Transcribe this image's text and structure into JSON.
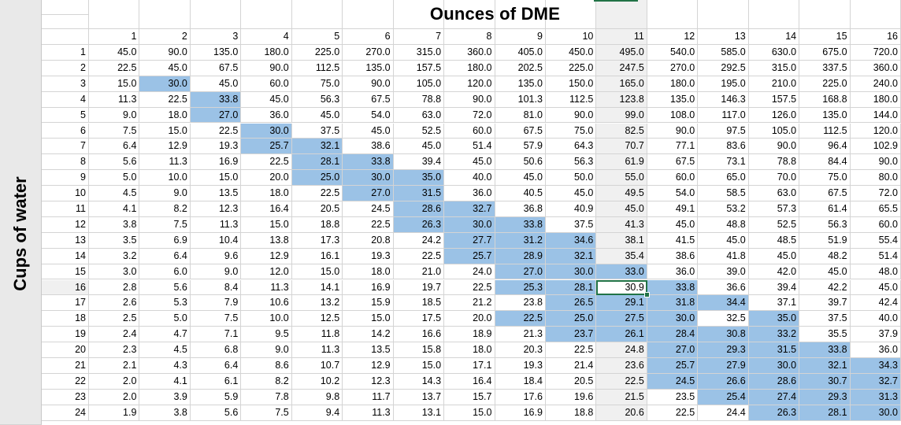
{
  "sheet": {
    "title": "Ounces of DME",
    "row_axis_label": "Cups of water",
    "column_headers": [
      "1",
      "2",
      "3",
      "4",
      "5",
      "6",
      "7",
      "8",
      "9",
      "10",
      "11",
      "12",
      "13",
      "14",
      "15",
      "16"
    ],
    "active_cell": {
      "row": "16",
      "column": "11",
      "value": "30.9"
    },
    "colors": {
      "highlight": "#9bc2e6",
      "selection_border": "#217346",
      "grid": "#d4d4d4"
    },
    "rows": [
      {
        "label": "1",
        "cells": [
          "45.0",
          "90.0",
          "135.0",
          "180.0",
          "225.0",
          "270.0",
          "315.0",
          "360.0",
          "405.0",
          "450.0",
          "495.0",
          "540.0",
          "585.0",
          "630.0",
          "675.0",
          "720.0"
        ],
        "highlight": []
      },
      {
        "label": "2",
        "cells": [
          "22.5",
          "45.0",
          "67.5",
          "90.0",
          "112.5",
          "135.0",
          "157.5",
          "180.0",
          "202.5",
          "225.0",
          "247.5",
          "270.0",
          "292.5",
          "315.0",
          "337.5",
          "360.0"
        ],
        "highlight": []
      },
      {
        "label": "3",
        "cells": [
          "15.0",
          "30.0",
          "45.0",
          "60.0",
          "75.0",
          "90.0",
          "105.0",
          "120.0",
          "135.0",
          "150.0",
          "165.0",
          "180.0",
          "195.0",
          "210.0",
          "225.0",
          "240.0"
        ],
        "highlight": [
          2
        ]
      },
      {
        "label": "4",
        "cells": [
          "11.3",
          "22.5",
          "33.8",
          "45.0",
          "56.3",
          "67.5",
          "78.8",
          "90.0",
          "101.3",
          "112.5",
          "123.8",
          "135.0",
          "146.3",
          "157.5",
          "168.8",
          "180.0"
        ],
        "highlight": [
          3
        ]
      },
      {
        "label": "5",
        "cells": [
          "9.0",
          "18.0",
          "27.0",
          "36.0",
          "45.0",
          "54.0",
          "63.0",
          "72.0",
          "81.0",
          "90.0",
          "99.0",
          "108.0",
          "117.0",
          "126.0",
          "135.0",
          "144.0"
        ],
        "highlight": [
          3
        ]
      },
      {
        "label": "6",
        "cells": [
          "7.5",
          "15.0",
          "22.5",
          "30.0",
          "37.5",
          "45.0",
          "52.5",
          "60.0",
          "67.5",
          "75.0",
          "82.5",
          "90.0",
          "97.5",
          "105.0",
          "112.5",
          "120.0"
        ],
        "highlight": [
          4
        ]
      },
      {
        "label": "7",
        "cells": [
          "6.4",
          "12.9",
          "19.3",
          "25.7",
          "32.1",
          "38.6",
          "45.0",
          "51.4",
          "57.9",
          "64.3",
          "70.7",
          "77.1",
          "83.6",
          "90.0",
          "96.4",
          "102.9"
        ],
        "highlight": [
          4,
          5
        ]
      },
      {
        "label": "8",
        "cells": [
          "5.6",
          "11.3",
          "16.9",
          "22.5",
          "28.1",
          "33.8",
          "39.4",
          "45.0",
          "50.6",
          "56.3",
          "61.9",
          "67.5",
          "73.1",
          "78.8",
          "84.4",
          "90.0"
        ],
        "highlight": [
          5,
          6
        ]
      },
      {
        "label": "9",
        "cells": [
          "5.0",
          "10.0",
          "15.0",
          "20.0",
          "25.0",
          "30.0",
          "35.0",
          "40.0",
          "45.0",
          "50.0",
          "55.0",
          "60.0",
          "65.0",
          "70.0",
          "75.0",
          "80.0"
        ],
        "highlight": [
          5,
          6,
          7
        ]
      },
      {
        "label": "10",
        "cells": [
          "4.5",
          "9.0",
          "13.5",
          "18.0",
          "22.5",
          "27.0",
          "31.5",
          "36.0",
          "40.5",
          "45.0",
          "49.5",
          "54.0",
          "58.5",
          "63.0",
          "67.5",
          "72.0"
        ],
        "highlight": [
          6,
          7
        ]
      },
      {
        "label": "11",
        "cells": [
          "4.1",
          "8.2",
          "12.3",
          "16.4",
          "20.5",
          "24.5",
          "28.6",
          "32.7",
          "36.8",
          "40.9",
          "45.0",
          "49.1",
          "53.2",
          "57.3",
          "61.4",
          "65.5"
        ],
        "highlight": [
          7,
          8
        ]
      },
      {
        "label": "12",
        "cells": [
          "3.8",
          "7.5",
          "11.3",
          "15.0",
          "18.8",
          "22.5",
          "26.3",
          "30.0",
          "33.8",
          "37.5",
          "41.3",
          "45.0",
          "48.8",
          "52.5",
          "56.3",
          "60.0"
        ],
        "highlight": [
          7,
          8,
          9
        ]
      },
      {
        "label": "13",
        "cells": [
          "3.5",
          "6.9",
          "10.4",
          "13.8",
          "17.3",
          "20.8",
          "24.2",
          "27.7",
          "31.2",
          "34.6",
          "38.1",
          "41.5",
          "45.0",
          "48.5",
          "51.9",
          "55.4"
        ],
        "highlight": [
          8,
          9,
          10
        ]
      },
      {
        "label": "14",
        "cells": [
          "3.2",
          "6.4",
          "9.6",
          "12.9",
          "16.1",
          "19.3",
          "22.5",
          "25.7",
          "28.9",
          "32.1",
          "35.4",
          "38.6",
          "41.8",
          "45.0",
          "48.2",
          "51.4"
        ],
        "highlight": [
          8,
          9,
          10
        ]
      },
      {
        "label": "15",
        "cells": [
          "3.0",
          "6.0",
          "9.0",
          "12.0",
          "15.0",
          "18.0",
          "21.0",
          "24.0",
          "27.0",
          "30.0",
          "33.0",
          "36.0",
          "39.0",
          "42.0",
          "45.0",
          "48.0"
        ],
        "highlight": [
          9,
          10,
          11
        ]
      },
      {
        "label": "16",
        "cells": [
          "2.8",
          "5.6",
          "8.4",
          "11.3",
          "14.1",
          "16.9",
          "19.7",
          "22.5",
          "25.3",
          "28.1",
          "30.9",
          "33.8",
          "36.6",
          "39.4",
          "42.2",
          "45.0"
        ],
        "highlight": [
          9,
          10,
          12
        ]
      },
      {
        "label": "17",
        "cells": [
          "2.6",
          "5.3",
          "7.9",
          "10.6",
          "13.2",
          "15.9",
          "18.5",
          "21.2",
          "23.8",
          "26.5",
          "29.1",
          "31.8",
          "34.4",
          "37.1",
          "39.7",
          "42.4"
        ],
        "highlight": [
          10,
          11,
          12,
          13
        ]
      },
      {
        "label": "18",
        "cells": [
          "2.5",
          "5.0",
          "7.5",
          "10.0",
          "12.5",
          "15.0",
          "17.5",
          "20.0",
          "22.5",
          "25.0",
          "27.5",
          "30.0",
          "32.5",
          "35.0",
          "37.5",
          "40.0"
        ],
        "highlight": [
          9,
          10,
          11,
          12,
          14
        ]
      },
      {
        "label": "19",
        "cells": [
          "2.4",
          "4.7",
          "7.1",
          "9.5",
          "11.8",
          "14.2",
          "16.6",
          "18.9",
          "21.3",
          "23.7",
          "26.1",
          "28.4",
          "30.8",
          "33.2",
          "35.5",
          "37.9"
        ],
        "highlight": [
          10,
          11,
          12,
          13,
          14
        ]
      },
      {
        "label": "20",
        "cells": [
          "2.3",
          "4.5",
          "6.8",
          "9.0",
          "11.3",
          "13.5",
          "15.8",
          "18.0",
          "20.3",
          "22.5",
          "24.8",
          "27.0",
          "29.3",
          "31.5",
          "33.8",
          "36.0"
        ],
        "highlight": [
          12,
          13,
          14,
          15
        ]
      },
      {
        "label": "21",
        "cells": [
          "2.1",
          "4.3",
          "6.4",
          "8.6",
          "10.7",
          "12.9",
          "15.0",
          "17.1",
          "19.3",
          "21.4",
          "23.6",
          "25.7",
          "27.9",
          "30.0",
          "32.1",
          "34.3"
        ],
        "highlight": [
          12,
          13,
          14,
          15,
          16
        ]
      },
      {
        "label": "22",
        "cells": [
          "2.0",
          "4.1",
          "6.1",
          "8.2",
          "10.2",
          "12.3",
          "14.3",
          "16.4",
          "18.4",
          "20.5",
          "22.5",
          "24.5",
          "26.6",
          "28.6",
          "30.7",
          "32.7"
        ],
        "highlight": [
          12,
          13,
          14,
          15,
          16
        ]
      },
      {
        "label": "23",
        "cells": [
          "2.0",
          "3.9",
          "5.9",
          "7.8",
          "9.8",
          "11.7",
          "13.7",
          "15.7",
          "17.6",
          "19.6",
          "21.5",
          "23.5",
          "25.4",
          "27.4",
          "29.3",
          "31.3"
        ],
        "highlight": [
          13,
          14,
          15,
          16
        ]
      },
      {
        "label": "24",
        "cells": [
          "1.9",
          "3.8",
          "5.6",
          "7.5",
          "9.4",
          "11.3",
          "13.1",
          "15.0",
          "16.9",
          "18.8",
          "20.6",
          "22.5",
          "24.4",
          "26.3",
          "28.1",
          "30.0"
        ],
        "highlight": [
          14,
          15,
          16
        ]
      }
    ]
  }
}
